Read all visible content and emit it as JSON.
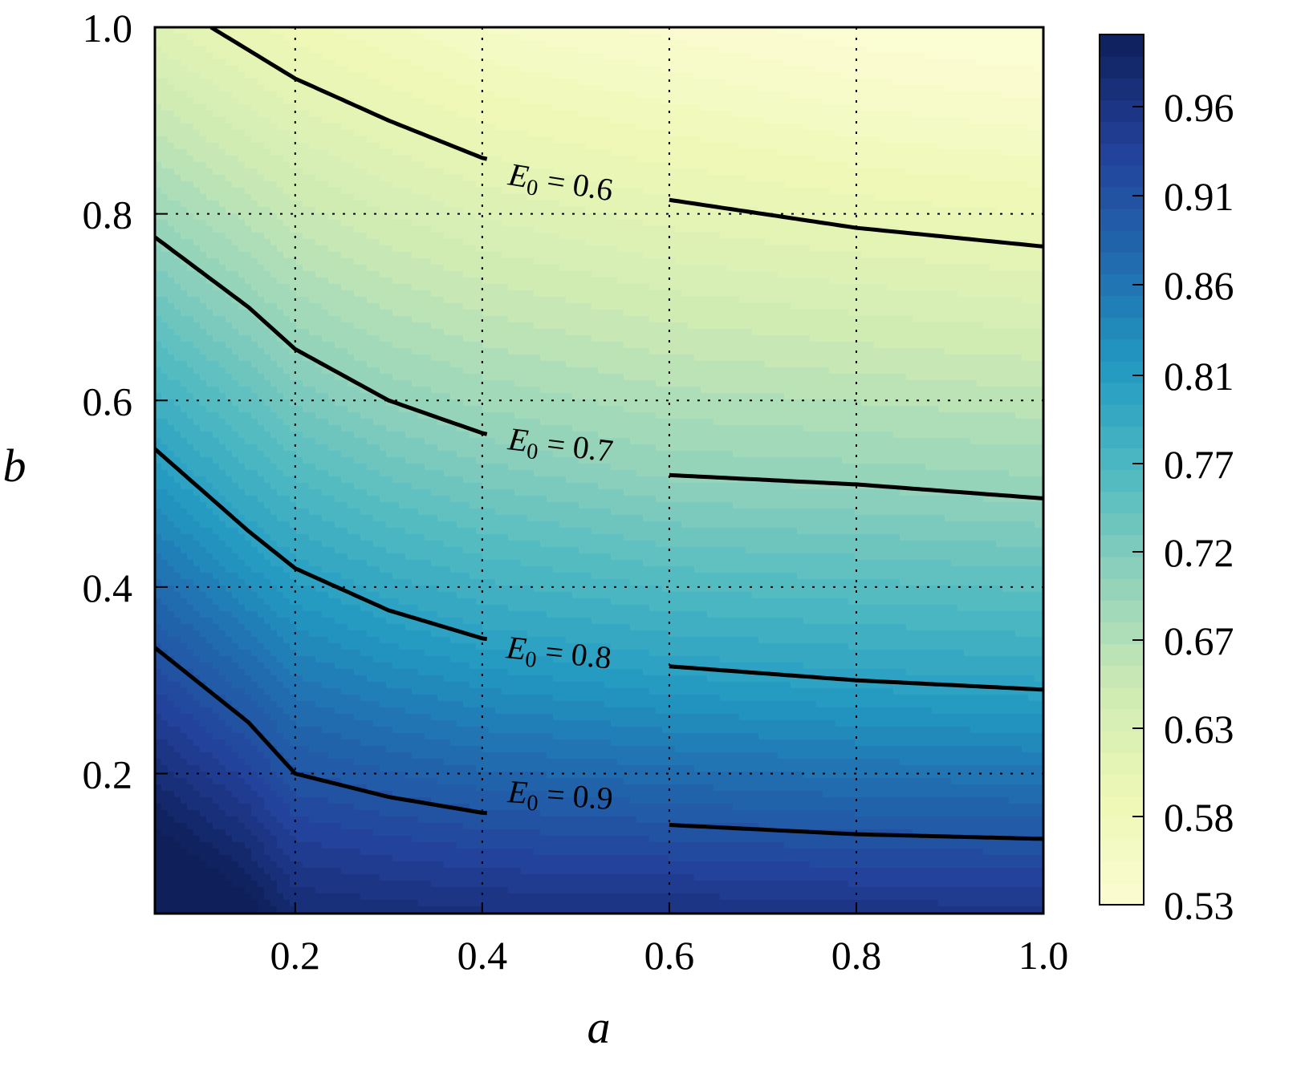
{
  "chart_data": {
    "type": "heatmap",
    "subtype": "filled-contour",
    "title": "",
    "xlabel": "a",
    "ylabel": "b",
    "xlim": [
      0.05,
      1.0
    ],
    "ylim": [
      0.05,
      1.0
    ],
    "xticks": [
      "0.2",
      "0.4",
      "0.6",
      "0.8",
      "1.0"
    ],
    "yticks": [
      "0.2",
      "0.4",
      "0.6",
      "0.8",
      "1.0"
    ],
    "grid": true,
    "colormap": "YlGnBu",
    "colorbar": {
      "range": [
        0.53,
        0.99
      ],
      "ticks": [
        "0.53",
        "0.58",
        "0.63",
        "0.67",
        "0.72",
        "0.77",
        "0.81",
        "0.86",
        "0.91",
        "0.96"
      ]
    },
    "contours": [
      {
        "label": "E0 = 0.6",
        "level": 0.6,
        "points": [
          [
            0.11,
            1.0
          ],
          [
            0.2,
            0.945
          ],
          [
            0.3,
            0.9
          ],
          [
            0.4,
            0.86
          ],
          [
            0.6,
            0.815
          ],
          [
            0.8,
            0.785
          ],
          [
            1.0,
            0.765
          ]
        ]
      },
      {
        "label": "E0 = 0.7",
        "level": 0.7,
        "points": [
          [
            0.05,
            0.775
          ],
          [
            0.15,
            0.7
          ],
          [
            0.2,
            0.655
          ],
          [
            0.3,
            0.6
          ],
          [
            0.4,
            0.565
          ],
          [
            0.6,
            0.52
          ],
          [
            0.8,
            0.51
          ],
          [
            1.0,
            0.495
          ]
        ]
      },
      {
        "label": "E0 = 0.8",
        "level": 0.8,
        "points": [
          [
            0.05,
            0.548
          ],
          [
            0.15,
            0.46
          ],
          [
            0.2,
            0.42
          ],
          [
            0.3,
            0.375
          ],
          [
            0.4,
            0.345
          ],
          [
            0.6,
            0.315
          ],
          [
            0.8,
            0.3
          ],
          [
            1.0,
            0.29
          ]
        ]
      },
      {
        "label": "E0 = 0.9",
        "level": 0.9,
        "points": [
          [
            0.05,
            0.335
          ],
          [
            0.15,
            0.255
          ],
          [
            0.2,
            0.2
          ],
          [
            0.3,
            0.175
          ],
          [
            0.4,
            0.158
          ],
          [
            0.6,
            0.145
          ],
          [
            0.8,
            0.135
          ],
          [
            1.0,
            0.13
          ]
        ]
      }
    ]
  },
  "labels": {
    "x_axis": "a",
    "y_axis": "b",
    "contour_labels": [
      {
        "prefix": "E",
        "sub": "0",
        "rest": " = 0.6"
      },
      {
        "prefix": "E",
        "sub": "0",
        "rest": " = 0.7"
      },
      {
        "prefix": "E",
        "sub": "0",
        "rest": " = 0.8"
      },
      {
        "prefix": "E",
        "sub": "0",
        "rest": " = 0.9"
      }
    ]
  }
}
